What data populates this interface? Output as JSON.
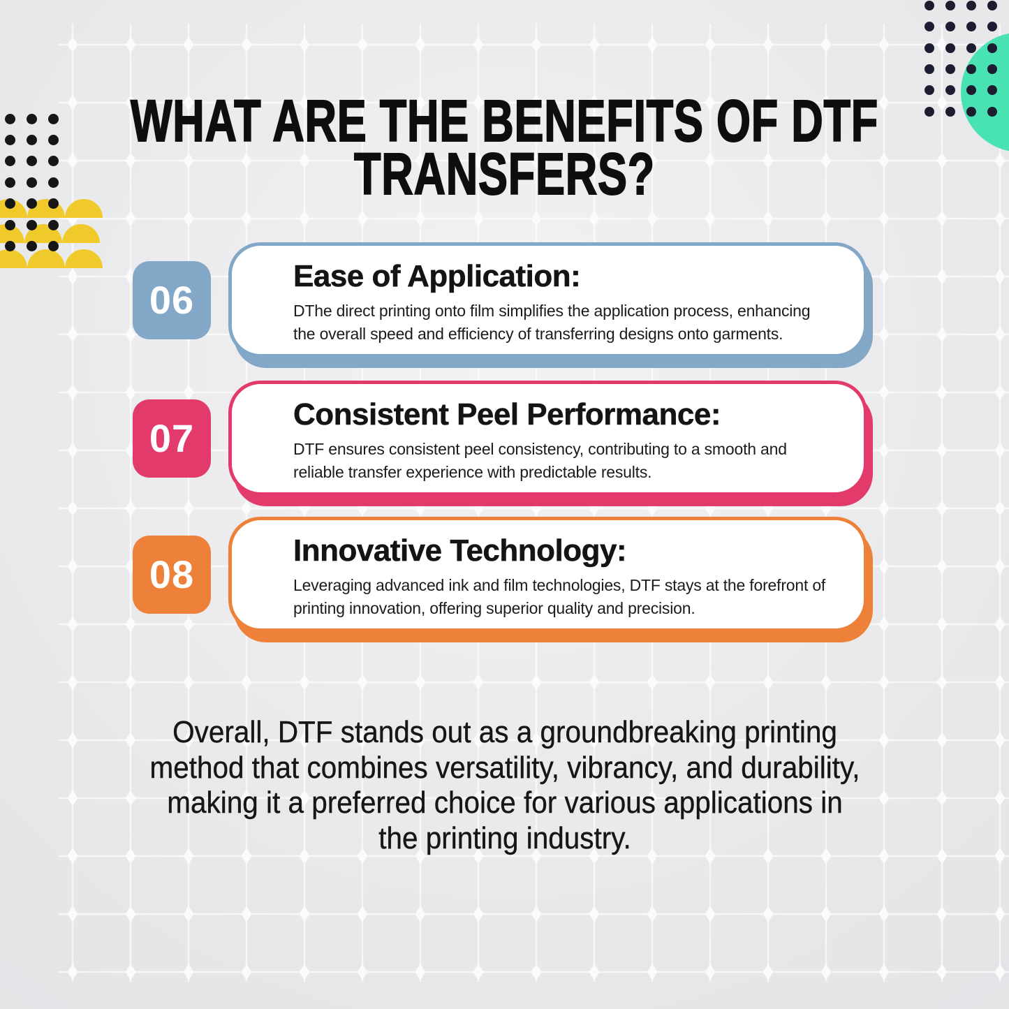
{
  "theme": {
    "background_gray": "#eaeaec",
    "accent_teal": "#49e3b3",
    "accent_yellow": "#f0ca2b",
    "dot_navy": "#1c1d31",
    "dot_black": "#161616",
    "text_dark": "#0e0e0e"
  },
  "title": {
    "line1": "WHAT ARE THE BENEFITS OF DTF",
    "line2": "TRANSFERS?"
  },
  "cards": [
    {
      "number": "06",
      "accent": "#83a8c7",
      "title": "Ease of Application:",
      "body": "DThe direct printing onto film simplifies the application process, enhancing the overall speed and efficiency of transferring designs onto garments."
    },
    {
      "number": "07",
      "accent": "#e23b6b",
      "title": "Consistent Peel Performance:",
      "body": "DTF ensures consistent peel consistency, contributing to a smooth and reliable transfer experience with predictable results."
    },
    {
      "number": "08",
      "accent": "#ee8139",
      "title": "Innovative Technology:",
      "body": "Leveraging advanced ink and film technologies, DTF stays at the forefront of printing innovation, offering superior quality and precision."
    }
  ],
  "footer": "Overall, DTF stands out as a groundbreaking printing method that combines versatility, vibrancy, and durability, making it a preferred choice for various applications in the printing industry."
}
